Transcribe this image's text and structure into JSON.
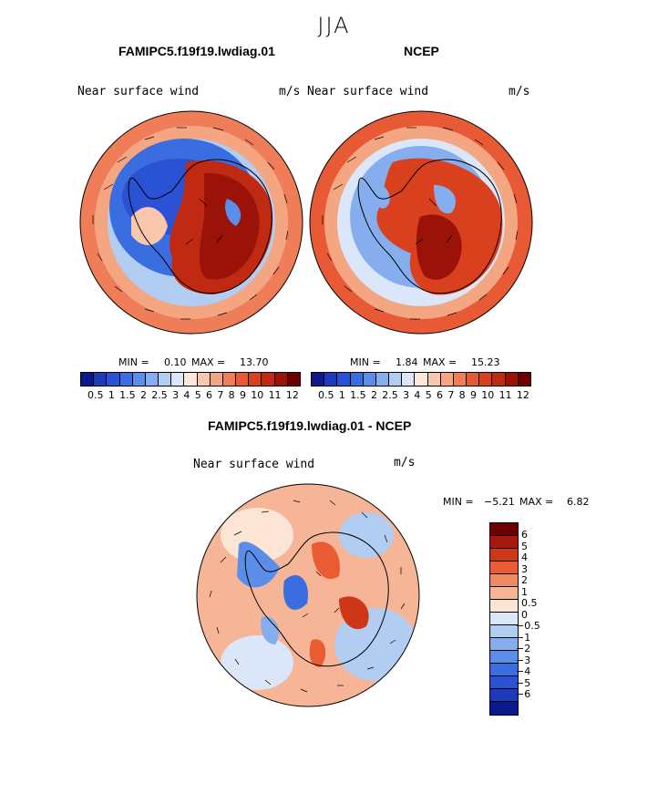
{
  "season": "JJA",
  "panels": [
    {
      "title": "FAMIPC5.f19f19.lwdiag.01",
      "variable": "Near surface wind",
      "units": "m/s",
      "min_label": "MIN =",
      "min_value": "0.10",
      "max_label": "MAX =",
      "max_value": "13.70"
    },
    {
      "title": "NCEP",
      "variable": "Near surface wind",
      "units": "m/s",
      "min_label": "MIN =",
      "min_value": "1.84",
      "max_label": "MAX =",
      "max_value": "15.23"
    }
  ],
  "diff_panel": {
    "title": "FAMIPC5.f19f19.lwdiag.01 - NCEP",
    "variable": "Near surface wind",
    "units": "m/s",
    "min_label": "MIN =",
    "min_value": "−5.21",
    "max_label": "MAX =",
    "max_value": "6.82"
  },
  "colorbar_top": {
    "colors": [
      "#0a1a8c",
      "#1f3ab8",
      "#2a52d4",
      "#3a6ee0",
      "#5a8ee8",
      "#86aeee",
      "#b2cdf2",
      "#dbe7f8",
      "#fde9dc",
      "#f8c7ad",
      "#f4a582",
      "#ef7e58",
      "#e85a35",
      "#d8401e",
      "#c12a12",
      "#9a1208",
      "#6e0000"
    ],
    "tick_labels": [
      "0.5",
      "1",
      "1.5",
      "2",
      "2.5",
      "3",
      "4",
      "5",
      "6",
      "7",
      "8",
      "9",
      "10",
      "11",
      "12"
    ]
  },
  "colorbar_diff": {
    "colors": [
      "#6e0000",
      "#a8180c",
      "#cf3617",
      "#e95c34",
      "#f08a63",
      "#f6b597",
      "#fde5d6",
      "#dbe7f8",
      "#b2cdf2",
      "#86aeee",
      "#5a8ee8",
      "#3a6ee0",
      "#2a52d4",
      "#1f3ab8",
      "#0a1a8c"
    ],
    "tick_labels": [
      "6",
      "5",
      "4",
      "3",
      "2",
      "1",
      "0.5",
      "0",
      "−0.5",
      "−1",
      "−2",
      "−3",
      "−4",
      "−5",
      "−6"
    ]
  }
}
